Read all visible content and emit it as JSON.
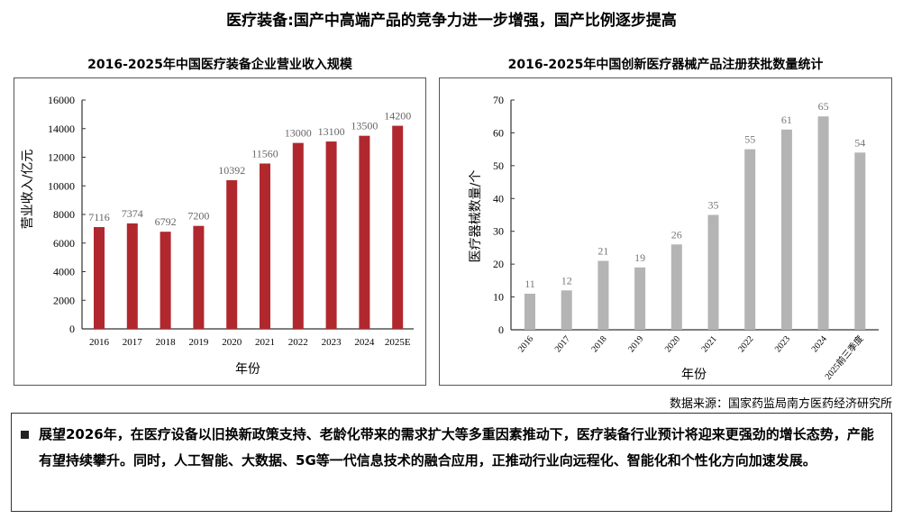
{
  "title": "医疗装备:国产中高端产品的竞争力进一步增强，国产比例逐步提高",
  "source": "数据来源：国家药监局南方医药经济研究所",
  "note": "展望2026年，在医疗设备以旧换新政策支持、老龄化带来的需求扩大等多重因素推动下，医疗装备行业预计将迎来更强劲的增长态势，产能有望持续攀升。同时，人工智能、大数据、5G等一代信息技术的融合应用，正推动行业向远程化、智能化和个性化方向加速发展。",
  "chart_data": [
    {
      "type": "bar",
      "title": "2016-2025年中国医疗装备企业营业收入规模",
      "categories": [
        "2016",
        "2017",
        "2018",
        "2019",
        "2020",
        "2021",
        "2022",
        "2023",
        "2024",
        "2025E"
      ],
      "values": [
        7116,
        7374,
        6792,
        7200,
        10392,
        11560,
        13000,
        13100,
        13500,
        14200
      ],
      "xlabel": "年份",
      "ylabel": "营业收入/亿元",
      "ylim": [
        0,
        16000
      ],
      "yticks": [
        0,
        2000,
        4000,
        6000,
        8000,
        10000,
        12000,
        14000,
        16000
      ],
      "color": "#b0282e",
      "grid": false
    },
    {
      "type": "bar",
      "title": "2016-2025年中国创新医疗器械产品注册获批数量统计",
      "categories": [
        "2016",
        "2017",
        "2018",
        "2019",
        "2020",
        "2021",
        "2022",
        "2023",
        "2024",
        "2025前三季度"
      ],
      "values": [
        11,
        12,
        21,
        19,
        26,
        35,
        55,
        61,
        65,
        54
      ],
      "xlabel": "年份",
      "ylabel": "医疗器械数量/个",
      "ylim": [
        0,
        70
      ],
      "yticks": [
        0,
        10,
        20,
        30,
        40,
        50,
        60,
        70
      ],
      "color": "#b4b4b4",
      "grid": false
    }
  ]
}
